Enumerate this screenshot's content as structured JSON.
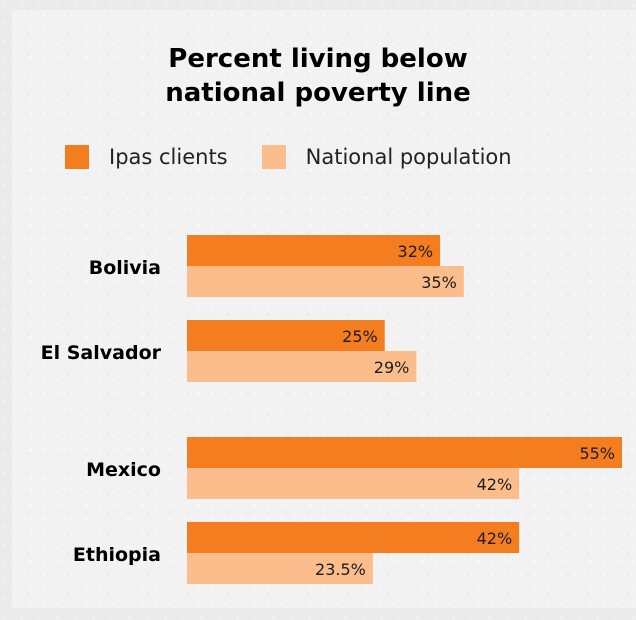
{
  "chart_data": {
    "type": "bar",
    "orientation": "horizontal",
    "title": "Percent living below national poverty line",
    "title_lines": [
      "Percent living below",
      "national poverty line"
    ],
    "categories": [
      "Bolivia",
      "El Salvador",
      "Mexico",
      "Ethiopia"
    ],
    "series": [
      {
        "name": "Ipas clients",
        "color": "#f47d20",
        "values": [
          32,
          25,
          55,
          42
        ],
        "labels": [
          "32%",
          "25%",
          "55%",
          "42%"
        ]
      },
      {
        "name": "National population",
        "color": "#fbbd8c",
        "values": [
          35,
          29,
          42,
          23.5
        ],
        "labels": [
          "35%",
          "29%",
          "42%",
          "23.5%"
        ]
      }
    ],
    "legend": "top",
    "grid": false,
    "xlim": [
      0,
      55
    ]
  }
}
